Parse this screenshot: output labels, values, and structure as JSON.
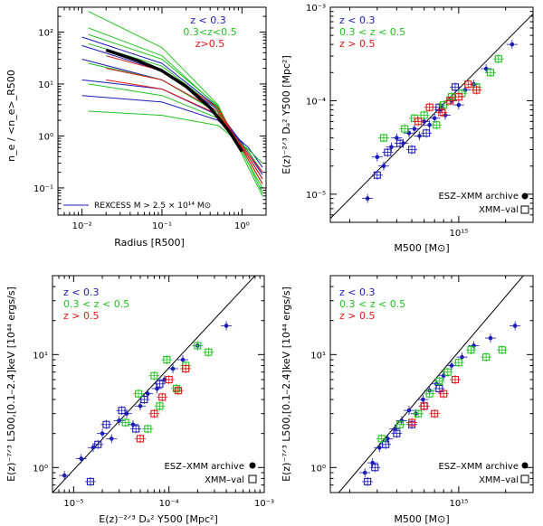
{
  "colors": {
    "low_z": "#1c1cb8",
    "mid_z": "#22c322",
    "high_z": "#e01818",
    "axis": "#000000",
    "profile_mean": "#000000"
  },
  "chart_data": [
    {
      "type": "line",
      "id": "profiles",
      "title": "",
      "xlabel": "Radius [R500]",
      "ylabel": "n_e / <n_e>_R500",
      "xscale": "log",
      "yscale": "log",
      "xlim": [
        0.005,
        2.0
      ],
      "ylim": [
        0.03,
        300
      ],
      "x_ticks": [
        0.01,
        0.1,
        1
      ],
      "x_tick_labels": [
        "10⁻²",
        "10⁻¹",
        "10⁰"
      ],
      "y_ticks": [
        0.1,
        1,
        10,
        100
      ],
      "y_tick_labels": [
        "10⁻¹",
        "10⁰",
        "10¹",
        "10²"
      ],
      "legend": [
        {
          "label": "z < 0.3",
          "color": "#1c1cb8"
        },
        {
          "label": "0.3<z<0.5",
          "color": "#22c322"
        },
        {
          "label": "z>0.5",
          "color": "#e01818"
        }
      ],
      "annotation": "REXCESS M > 2.5 × 10¹⁴ M⊙",
      "series": [
        {
          "name": "REXCESS mean",
          "color": "#000000",
          "x": [
            0.02,
            0.05,
            0.1,
            0.2,
            0.4,
            0.7,
            1.0
          ],
          "values": [
            45,
            28,
            18,
            9,
            3.5,
            1.2,
            0.5
          ]
        },
        {
          "name": "z<0.3 #1",
          "color": "#1c1cb8",
          "x": [
            0.01,
            0.1,
            0.5,
            1.2,
            1.8
          ],
          "values": [
            80,
            25,
            3.5,
            0.35,
            0.12
          ]
        },
        {
          "name": "z<0.3 #2",
          "color": "#1c1cb8",
          "x": [
            0.01,
            0.1,
            0.5,
            1.2,
            1.8
          ],
          "values": [
            30,
            12,
            3.0,
            0.5,
            0.2
          ]
        },
        {
          "name": "z<0.3 #3",
          "color": "#1c1cb8",
          "x": [
            0.01,
            0.1,
            0.5,
            1.2,
            1.8
          ],
          "values": [
            12,
            8,
            2.5,
            0.4,
            0.15
          ]
        },
        {
          "name": "z<0.3 #4",
          "color": "#1c1cb8",
          "x": [
            0.01,
            0.1,
            0.5,
            1.2,
            1.8
          ],
          "values": [
            55,
            18,
            3.2,
            0.45,
            0.18
          ]
        },
        {
          "name": "z<0.3 #5",
          "color": "#1c1cb8",
          "x": [
            0.01,
            0.1,
            0.5,
            1.2,
            1.8
          ],
          "values": [
            6,
            4.5,
            2.0,
            0.6,
            0.25
          ]
        },
        {
          "name": "0.3<z<0.5 #1",
          "color": "#22c322",
          "x": [
            0.012,
            0.1,
            0.5,
            1.2,
            1.8
          ],
          "values": [
            250,
            50,
            4.0,
            0.25,
            0.07
          ]
        },
        {
          "name": "0.3<z<0.5 #2",
          "color": "#22c322",
          "x": [
            0.012,
            0.1,
            0.5,
            1.2,
            1.8
          ],
          "values": [
            120,
            35,
            3.6,
            0.3,
            0.1
          ]
        },
        {
          "name": "0.3<z<0.5 #3",
          "color": "#22c322",
          "x": [
            0.012,
            0.1,
            0.5,
            1.2,
            1.8
          ],
          "values": [
            60,
            22,
            3.3,
            0.35,
            0.12
          ]
        },
        {
          "name": "0.3<z<0.5 #4",
          "color": "#22c322",
          "x": [
            0.012,
            0.1,
            0.5,
            1.2,
            1.8
          ],
          "values": [
            25,
            12,
            2.8,
            0.4,
            0.15
          ]
        },
        {
          "name": "0.3<z<0.5 #5",
          "color": "#22c322",
          "x": [
            0.012,
            0.1,
            0.5,
            1.2,
            1.8
          ],
          "values": [
            10,
            6,
            2.2,
            0.5,
            0.2
          ]
        },
        {
          "name": "0.3<z<0.5 #6",
          "color": "#22c322",
          "x": [
            0.012,
            0.1,
            0.5,
            1.2,
            1.8
          ],
          "values": [
            3,
            2.5,
            1.6,
            0.55,
            0.3
          ]
        },
        {
          "name": "0.3<z<0.5 #7",
          "color": "#22c322",
          "x": [
            0.012,
            0.1,
            0.5,
            1.2,
            1.8
          ],
          "values": [
            90,
            30,
            3.8,
            0.3,
            0.08
          ]
        },
        {
          "name": "z>0.5 #1",
          "color": "#e01818",
          "x": [
            0.02,
            0.1,
            0.5,
            1.2,
            1.8
          ],
          "values": [
            20,
            12,
            3.0,
            0.4,
            0.15
          ]
        },
        {
          "name": "z>0.5 #2",
          "color": "#e01818",
          "x": [
            0.02,
            0.1,
            0.5,
            1.2,
            1.8
          ],
          "values": [
            35,
            18,
            3.5,
            0.35,
            0.12
          ]
        },
        {
          "name": "z>0.5 #3",
          "color": "#e01818",
          "x": [
            0.02,
            0.1,
            0.5,
            1.2,
            1.8
          ],
          "values": [
            12,
            8,
            2.6,
            0.45,
            0.2
          ]
        }
      ]
    },
    {
      "type": "scatter",
      "id": "y_vs_m",
      "xlabel": "M500 [M⊙]",
      "ylabel": "E(z)⁻²ᐟ³ Dₐ² Y500 [Mpc²]",
      "xscale": "log",
      "yscale": "log",
      "xlim": [
        150000000000000.0,
        3000000000000000.0
      ],
      "ylim": [
        5e-06,
        0.001
      ],
      "x_ticks": [
        1000000000000000.0
      ],
      "x_tick_labels": [
        "10¹⁵"
      ],
      "y_ticks": [
        1e-05,
        0.0001,
        0.001
      ],
      "y_tick_labels": [
        "10⁻⁵",
        "10⁻⁴",
        "10⁻³"
      ],
      "relation_line": {
        "x": [
          150000000000000.0,
          3000000000000000.0
        ],
        "y": [
          5.5e-06,
          0.00085
        ]
      },
      "legend": [
        {
          "label": "z < 0.3",
          "color": "#1c1cb8"
        },
        {
          "label": "0.3 < z < 0.5",
          "color": "#22c322"
        },
        {
          "label": "z > 0.5",
          "color": "#e01818"
        }
      ],
      "marker_legend": [
        {
          "label": "ESZ–XMM archive",
          "marker": "dot"
        },
        {
          "label": "XMM–val",
          "marker": "square"
        }
      ],
      "series": [
        {
          "name": "z < 0.3 (archive)",
          "color": "#1c1cb8",
          "marker": "dot",
          "x": [
            260000000000000.0,
            300000000000000.0,
            330000000000000.0,
            370000000000000.0,
            400000000000000.0,
            440000000000000.0,
            480000000000000.0,
            520000000000000.0,
            560000000000000.0,
            600000000000000.0,
            650000000000000.0,
            700000000000000.0,
            760000000000000.0,
            820000000000000.0,
            900000000000000.0,
            1000000000000000.0,
            1100000000000000.0,
            1250000000000000.0,
            1500000000000000.0,
            2200000000000000.0
          ],
          "values": [
            9e-06,
            2.5e-05,
            2e-05,
            3.2e-05,
            4e-05,
            3.5e-05,
            4.5e-05,
            5e-05,
            4.2e-05,
            6e-05,
            5.5e-05,
            6.5e-05,
            8e-05,
            7e-05,
            0.0001,
            9e-05,
            0.00013,
            0.00015,
            0.00022,
            0.0004
          ]
        },
        {
          "name": "z < 0.3 (XMM-val)",
          "color": "#1c1cb8",
          "marker": "square",
          "x": [
            300000000000000.0,
            350000000000000.0,
            420000000000000.0,
            500000000000000.0,
            620000000000000.0,
            750000000000000.0,
            950000000000000.0
          ],
          "values": [
            1.6e-05,
            2.8e-05,
            3.5e-05,
            3e-05,
            4.5e-05,
            8.5e-05,
            0.00014
          ]
        },
        {
          "name": "0.3<z<0.5",
          "color": "#22c322",
          "marker": "square",
          "x": [
            330000000000000.0,
            450000000000000.0,
            520000000000000.0,
            600000000000000.0,
            720000000000000.0,
            800000000000000.0,
            900000000000000.0,
            1050000000000000.0,
            1300000000000000.0,
            1600000000000000.0,
            1800000000000000.0
          ],
          "values": [
            4e-05,
            5e-05,
            6.5e-05,
            7e-05,
            5.5e-05,
            9e-05,
            0.00011,
            0.00012,
            0.00014,
            0.0002,
            0.00028
          ]
        },
        {
          "name": "z>0.5",
          "color": "#e01818",
          "marker": "square",
          "x": [
            550000000000000.0,
            650000000000000.0,
            780000000000000.0,
            880000000000000.0,
            1000000000000000.0,
            1150000000000000.0,
            1300000000000000.0
          ],
          "values": [
            6e-05,
            8.5e-05,
            7.5e-05,
            0.0001,
            0.00011,
            0.00015,
            0.00013
          ]
        }
      ]
    },
    {
      "type": "scatter",
      "id": "l_vs_y",
      "xlabel": "E(z)⁻²ᐟ³ Dₐ² Y500 [Mpc²]",
      "ylabel": "E(z)⁻⁷ᐟ³ L500,[0.1–2.4]keV [10⁴⁴ ergs/s]",
      "xscale": "log",
      "yscale": "log",
      "xlim": [
        6e-06,
        0.001
      ],
      "ylim": [
        0.6,
        50
      ],
      "x_ticks": [
        1e-05,
        0.0001,
        0.001
      ],
      "x_tick_labels": [
        "10⁻⁵",
        "10⁻⁴",
        "10⁻³"
      ],
      "y_ticks": [
        1,
        10
      ],
      "y_tick_labels": [
        "10⁰",
        "10¹"
      ],
      "relation_line": {
        "x": [
          6e-06,
          0.0008
        ],
        "y": [
          0.6,
          50
        ]
      },
      "legend": [
        {
          "label": "z < 0.3",
          "color": "#1c1cb8"
        },
        {
          "label": "0.3 < z < 0.5",
          "color": "#22c322"
        },
        {
          "label": "z > 0.5",
          "color": "#e01818"
        }
      ],
      "marker_legend": [
        {
          "label": "ESZ–XMM archive",
          "marker": "dot"
        },
        {
          "label": "XMM–val",
          "marker": "square"
        }
      ],
      "series": [
        {
          "name": "z < 0.3 (archive)",
          "color": "#1c1cb8",
          "marker": "dot",
          "x": [
            8e-06,
            1.2e-05,
            1.6e-05,
            2e-05,
            2.5e-05,
            3e-05,
            3.6e-05,
            4.2e-05,
            5e-05,
            6e-05,
            7.5e-05,
            9e-05,
            0.00011,
            0.00014,
            0.0002,
            0.0004
          ],
          "values": [
            0.85,
            1.2,
            1.5,
            2.0,
            1.8,
            2.6,
            3.0,
            2.4,
            3.5,
            4.5,
            5.0,
            6.0,
            7.5,
            9.0,
            12,
            18
          ]
        },
        {
          "name": "z < 0.3 (XMM-val)",
          "color": "#1c1cb8",
          "marker": "square",
          "x": [
            1.5e-05,
            1.8e-05,
            2.2e-05,
            3.2e-05,
            4.5e-05,
            5.5e-05,
            8e-05
          ],
          "values": [
            0.75,
            1.6,
            2.4,
            3.2,
            2.2,
            4.0,
            5.5
          ]
        },
        {
          "name": "0.3<z<0.5",
          "color": "#22c322",
          "marker": "square",
          "x": [
            3.5e-05,
            4.8e-05,
            6e-05,
            7e-05,
            8e-05,
            9.5e-05,
            0.00012,
            0.00015,
            0.0002,
            0.00026
          ],
          "values": [
            2.5,
            4.5,
            2.2,
            6.5,
            3.5,
            9.0,
            5.0,
            8.0,
            12,
            10.5
          ]
        },
        {
          "name": "z>0.5",
          "color": "#e01818",
          "marker": "square",
          "x": [
            5e-05,
            7e-05,
            8.5e-05,
            0.0001,
            0.000125,
            0.00015
          ],
          "values": [
            1.8,
            3.0,
            4.2,
            6.0,
            4.8,
            7.5
          ]
        }
      ]
    },
    {
      "type": "scatter",
      "id": "l_vs_m",
      "xlabel": "M500 [M⊙]",
      "ylabel": "E(z)⁻⁷ᐟ³ L500,[0.1–2.4]keV [10⁴⁴ ergs/s]",
      "xscale": "log",
      "yscale": "log",
      "xlim": [
        150000000000000.0,
        3000000000000000.0
      ],
      "ylim": [
        0.6,
        50
      ],
      "x_ticks": [
        1000000000000000.0
      ],
      "x_tick_labels": [
        "10¹⁵"
      ],
      "y_ticks": [
        1,
        10
      ],
      "y_tick_labels": [
        "10⁰",
        "10¹"
      ],
      "relation_line": {
        "x": [
          170000000000000.0,
          2600000000000000.0
        ],
        "y": [
          0.6,
          50
        ]
      },
      "legend": [
        {
          "label": "z < 0.3",
          "color": "#1c1cb8"
        },
        {
          "label": "0.3 < z < 0.5",
          "color": "#22c322"
        },
        {
          "label": "z > 0.5",
          "color": "#e01818"
        }
      ],
      "marker_legend": [
        {
          "label": "ESZ–XMM archive",
          "marker": "dot"
        },
        {
          "label": "XMM–val",
          "marker": "square"
        }
      ],
      "series": [
        {
          "name": "z < 0.3 (archive)",
          "color": "#1c1cb8",
          "marker": "dot",
          "x": [
            250000000000000.0,
            280000000000000.0,
            310000000000000.0,
            350000000000000.0,
            390000000000000.0,
            430000000000000.0,
            480000000000000.0,
            530000000000000.0,
            590000000000000.0,
            650000000000000.0,
            720000000000000.0,
            800000000000000.0,
            900000000000000.0,
            1050000000000000.0,
            1250000000000000.0,
            1600000000000000.0,
            2300000000000000.0
          ],
          "values": [
            0.9,
            1.1,
            1.5,
            1.8,
            2.2,
            2.6,
            3.2,
            3.0,
            4.0,
            4.8,
            5.5,
            6.5,
            8.0,
            9.5,
            12,
            14,
            18
          ]
        },
        {
          "name": "z < 0.3 (XMM-val)",
          "color": "#1c1cb8",
          "marker": "square",
          "x": [
            260000000000000.0,
            290000000000000.0,
            340000000000000.0,
            400000000000000.0,
            500000000000000.0,
            600000000000000.0,
            750000000000000.0
          ],
          "values": [
            0.75,
            1.0,
            1.6,
            2.0,
            2.4,
            3.5,
            5.0
          ]
        },
        {
          "name": "0.3<z<0.5",
          "color": "#22c322",
          "marker": "square",
          "x": [
            320000000000000.0,
            420000000000000.0,
            550000000000000.0,
            650000000000000.0,
            750000000000000.0,
            850000000000000.0,
            1000000000000000.0,
            1200000000000000.0,
            1500000000000000.0,
            1900000000000000.0
          ],
          "values": [
            1.8,
            2.4,
            3.0,
            4.5,
            5.8,
            7.0,
            8.5,
            11,
            9.5,
            11
          ]
        },
        {
          "name": "z>0.5",
          "color": "#e01818",
          "marker": "square",
          "x": [
            500000000000000.0,
            600000000000000.0,
            700000000000000.0,
            800000000000000.0,
            950000000000000.0
          ],
          "values": [
            2.5,
            3.5,
            3.0,
            4.5,
            6.0
          ]
        }
      ]
    }
  ]
}
